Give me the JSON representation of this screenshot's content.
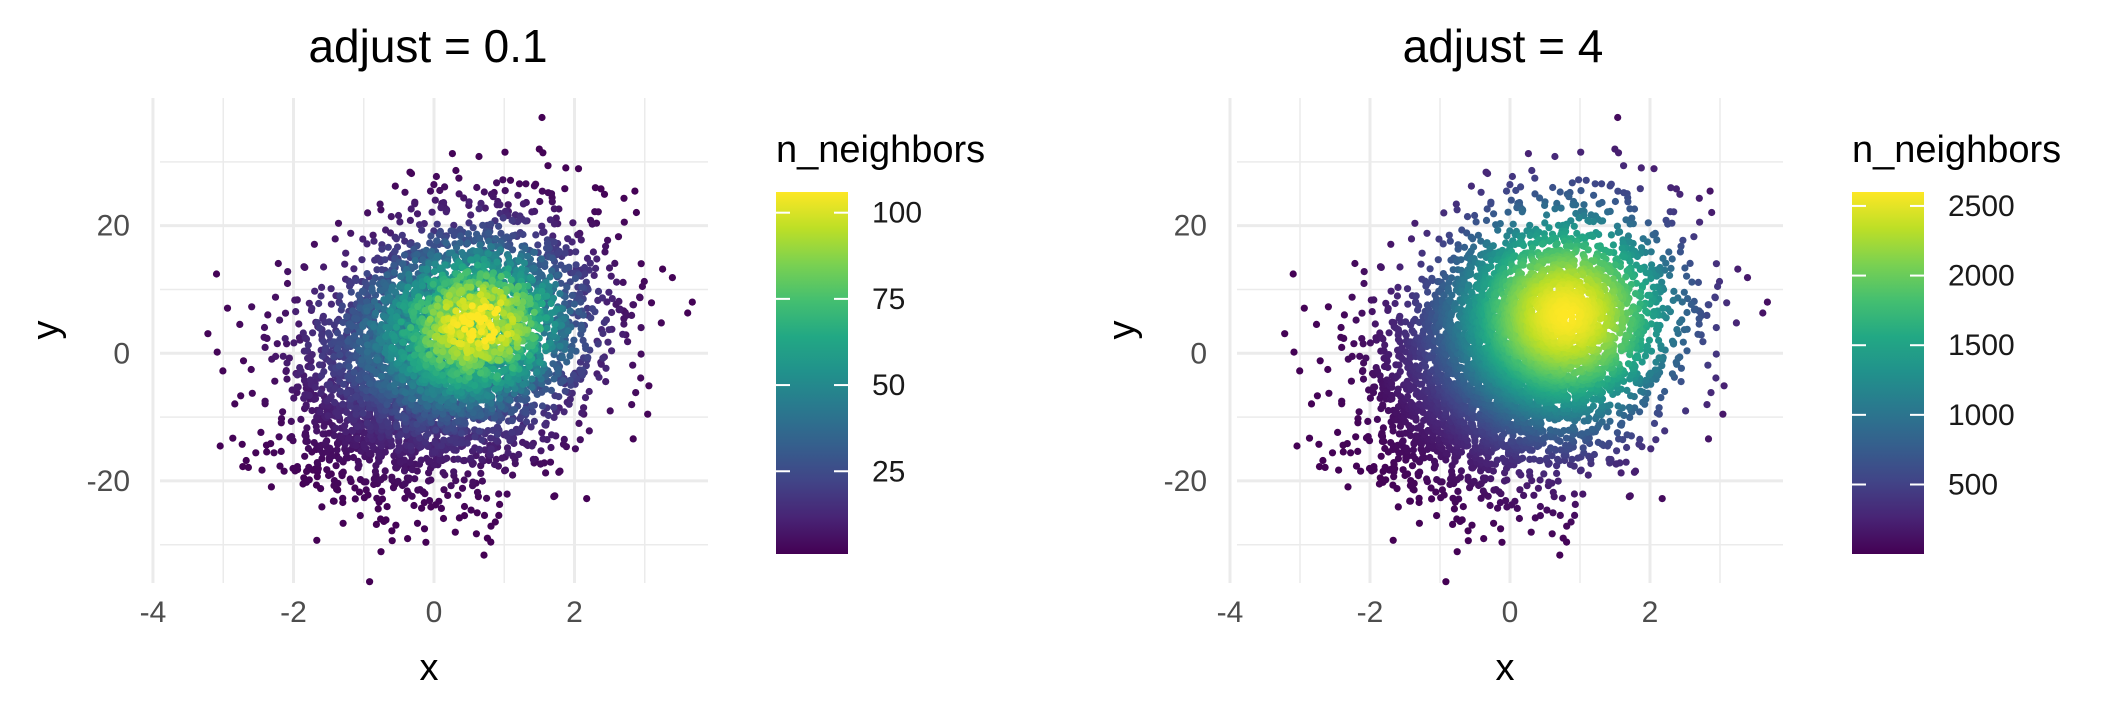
{
  "chart_data": [
    {
      "type": "scatter",
      "title": "adjust = 0.1",
      "xlabel": "x",
      "ylabel": "y",
      "xlim": [
        -3.9,
        3.9
      ],
      "ylim": [
        -36,
        40
      ],
      "xticks": [
        -4,
        -2,
        0,
        2
      ],
      "yticks": [
        -20,
        0,
        20
      ],
      "x_tick_labels": [
        "-4",
        "-2",
        "0",
        "2"
      ],
      "y_tick_labels": [
        "-20",
        "0",
        "20"
      ],
      "grid": true,
      "point_color_variable": "n_neighbors",
      "colorscale": "viridis",
      "density": {
        "peak_x": 0.8,
        "peak_y": 6,
        "sd_x": 1.0,
        "sd_y": 10,
        "corr": 0.3,
        "n_points": 5000
      },
      "legend": {
        "title": "n_neighbors",
        "type": "colorbar",
        "range": [
          1,
          106
        ],
        "breaks": [
          25,
          50,
          75,
          100
        ],
        "labels": [
          "25",
          "50",
          "75",
          "100"
        ],
        "placement": "right"
      }
    },
    {
      "type": "scatter",
      "title": "adjust = 4",
      "xlabel": "x",
      "ylabel": "y",
      "xlim": [
        -3.9,
        3.9
      ],
      "ylim": [
        -36,
        40
      ],
      "xticks": [
        -4,
        -2,
        0,
        2
      ],
      "yticks": [
        -20,
        0,
        20
      ],
      "x_tick_labels": [
        "-4",
        "-2",
        "0",
        "2"
      ],
      "y_tick_labels": [
        "-20",
        "0",
        "20"
      ],
      "grid": true,
      "point_color_variable": "n_neighbors",
      "colorscale": "viridis",
      "density": {
        "peak_x": 0.8,
        "peak_y": 6,
        "sd_x": 1.0,
        "sd_y": 10,
        "corr": 0.3,
        "n_points": 5000
      },
      "legend": {
        "title": "n_neighbors",
        "type": "colorbar",
        "range": [
          1,
          2600
        ],
        "breaks": [
          500,
          1000,
          1500,
          2000,
          2500
        ],
        "labels": [
          "500",
          "1000",
          "1500",
          "2000",
          "2500"
        ],
        "placement": "right"
      }
    }
  ]
}
